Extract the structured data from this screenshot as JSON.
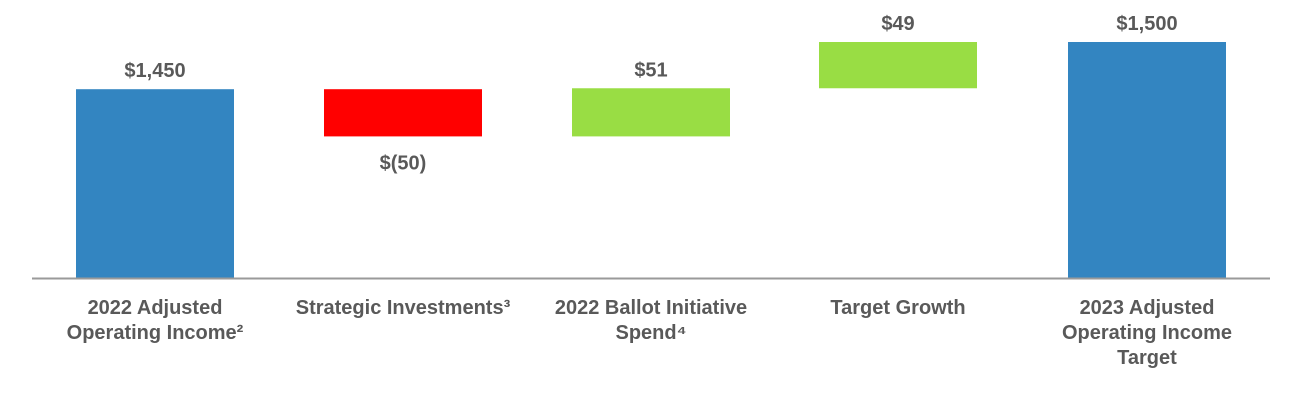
{
  "chart_data": {
    "type": "waterfall",
    "categories": [
      "2022 Adjusted\nOperating Income²",
      "Strategic Investments³",
      "2022 Ballot Initiative\nSpend⁴",
      "Target Growth",
      "2023 Adjusted\nOperating Income\nTarget"
    ],
    "steps": [
      {
        "kind": "total",
        "value": 1450,
        "label": "$1,450"
      },
      {
        "kind": "delta",
        "value": -50,
        "label": "$(50)"
      },
      {
        "kind": "delta",
        "value": 51,
        "label": "$51"
      },
      {
        "kind": "delta",
        "value": 49,
        "label": "$49"
      },
      {
        "kind": "total",
        "value": 1500,
        "label": "$1,500"
      }
    ],
    "colors": {
      "total": "#3385c1",
      "decrease": "#ff0000",
      "increase": "#99dd44",
      "axis": "#9a9a9a",
      "text": "#595959"
    }
  }
}
